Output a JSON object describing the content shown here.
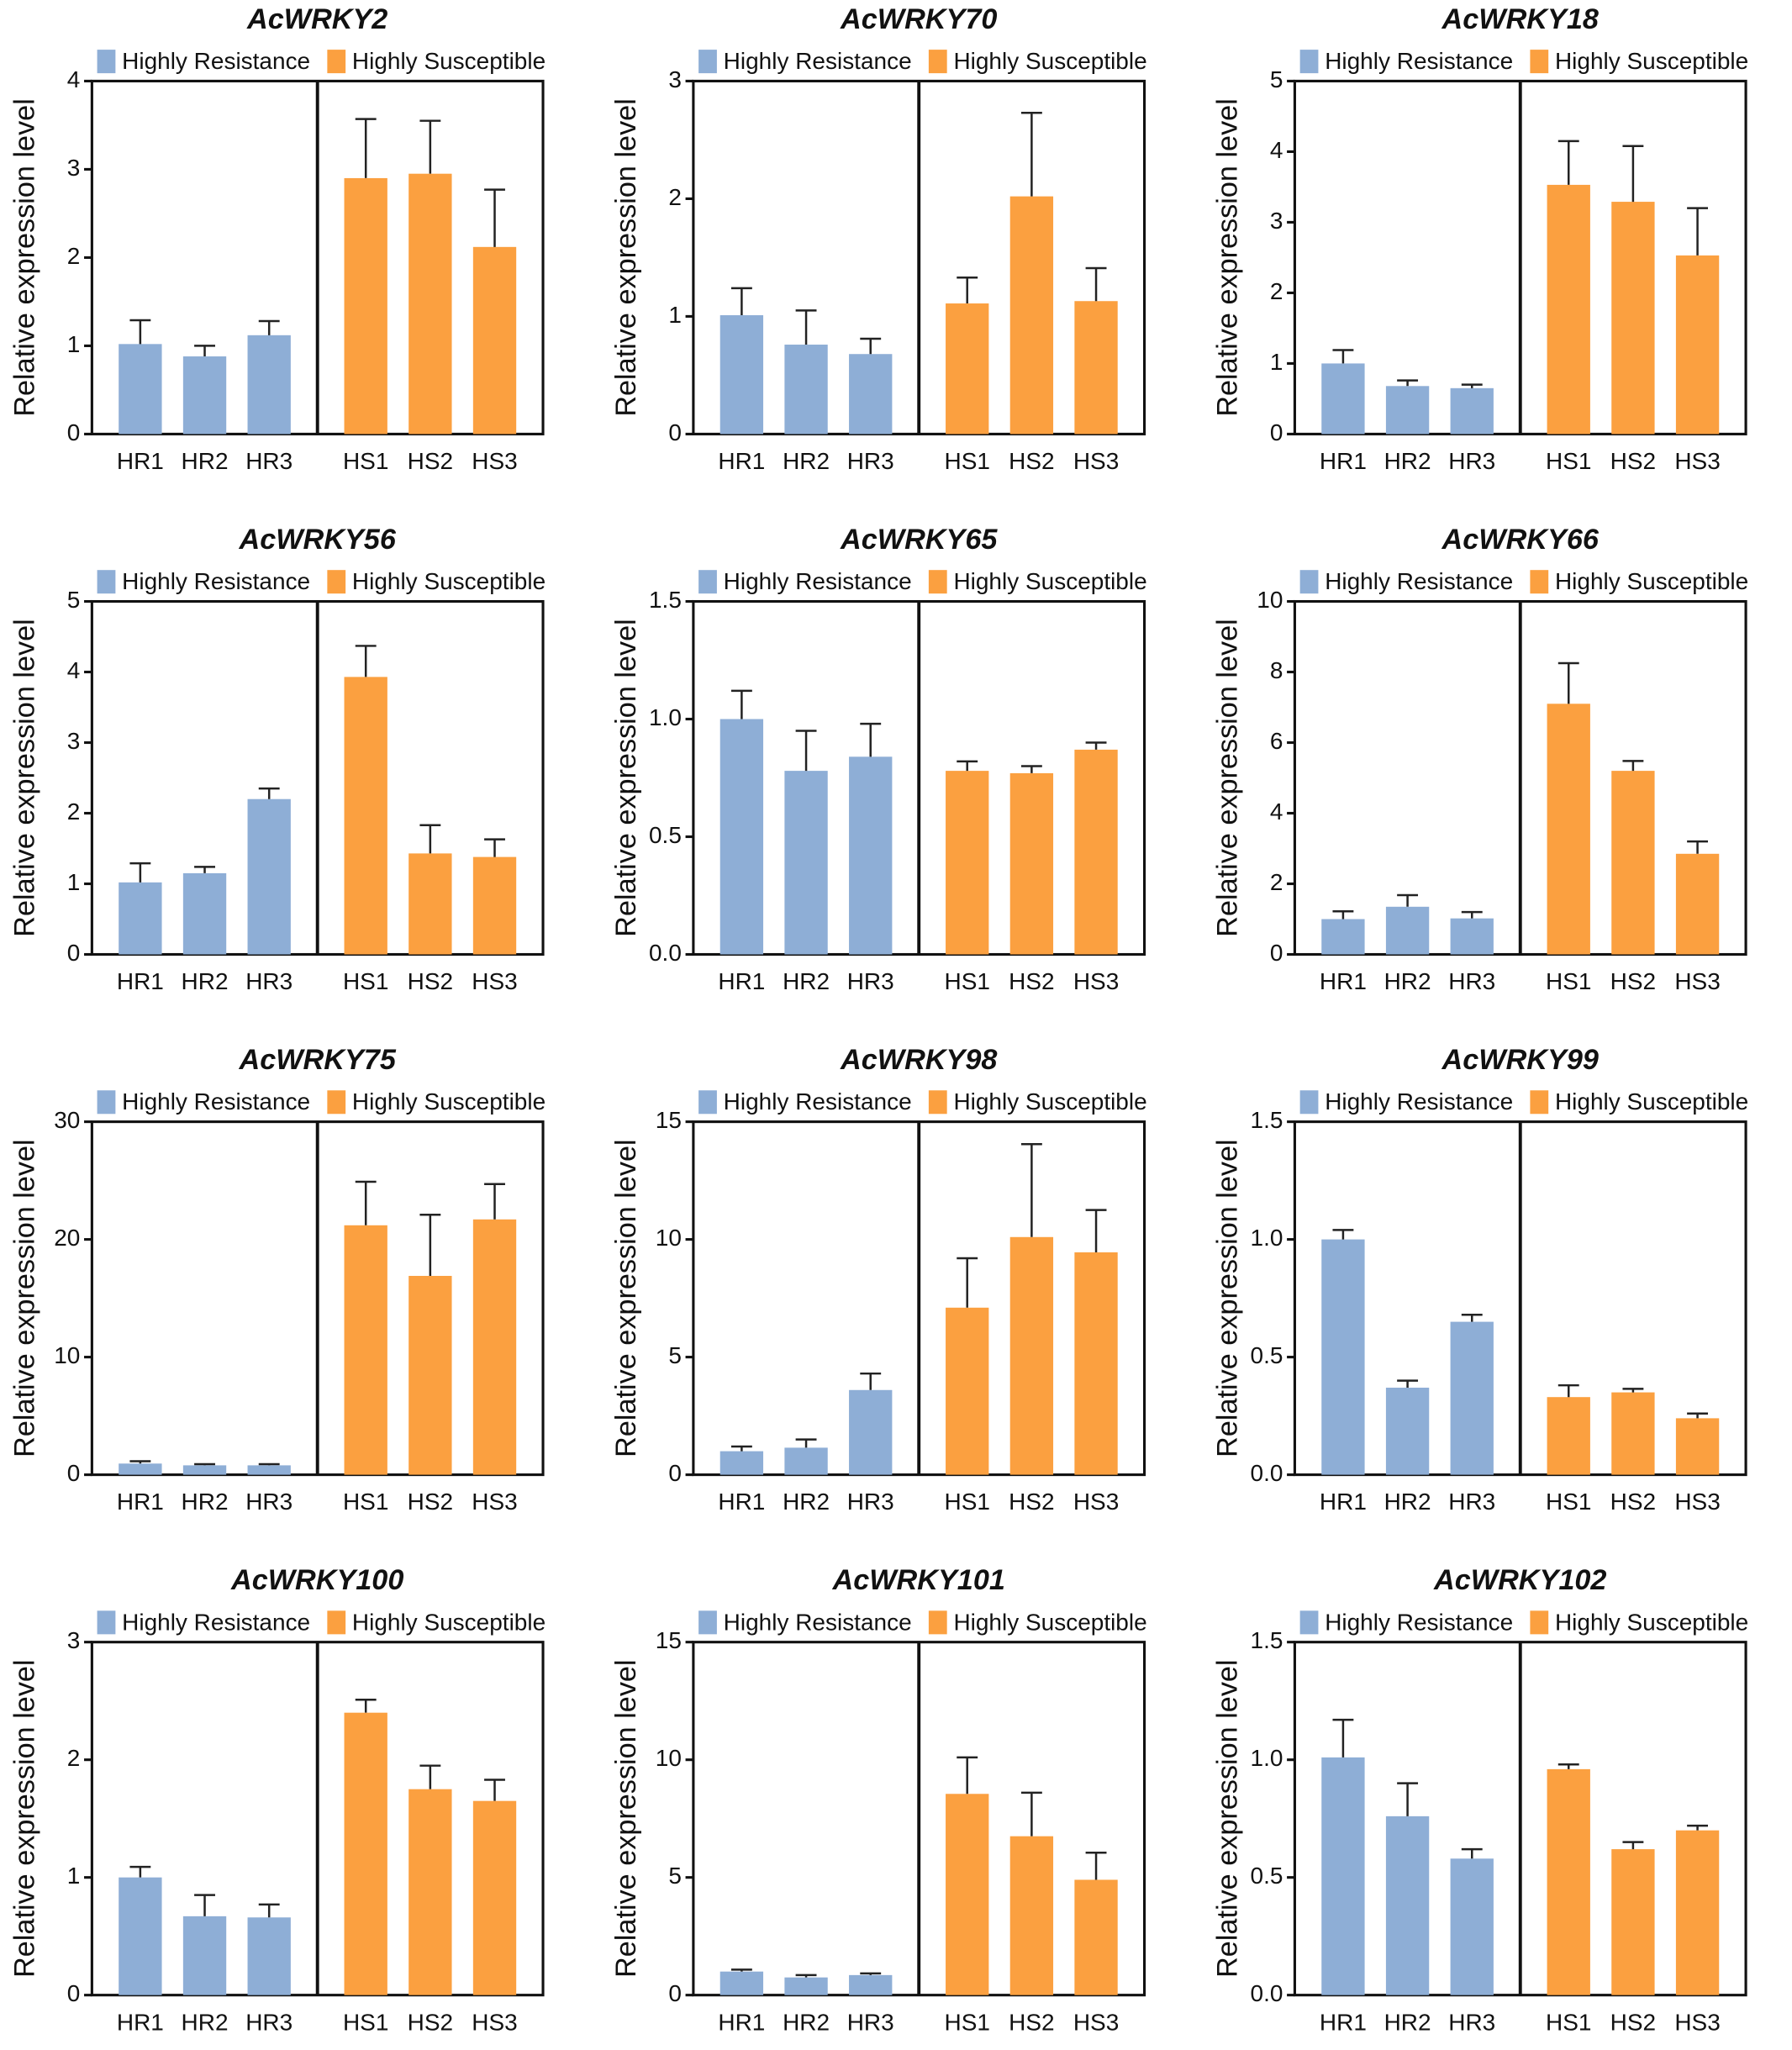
{
  "chart_data": [
    {
      "type": "bar",
      "title": "AcWRKY2",
      "y_label": "Relative expression level",
      "ylim": [
        0,
        4
      ],
      "yticks": [
        0,
        1,
        2,
        3,
        4
      ],
      "series": [
        {
          "name": "Highly Resistance",
          "color": "#8eaed6",
          "categories": [
            "HR1",
            "HR2",
            "HR3"
          ],
          "values": [
            1.02,
            0.88,
            1.12
          ],
          "errors": [
            0.27,
            0.12,
            0.16
          ]
        },
        {
          "name": "Highly Susceptible",
          "color": "#fba040",
          "categories": [
            "HS1",
            "HS2",
            "HS3"
          ],
          "values": [
            2.9,
            2.95,
            2.12
          ],
          "errors": [
            0.67,
            0.6,
            0.65
          ]
        }
      ]
    },
    {
      "type": "bar",
      "title": "AcWRKY70",
      "y_label": "Relative expression level",
      "ylim": [
        0,
        3
      ],
      "yticks": [
        0,
        1,
        2,
        3
      ],
      "series": [
        {
          "name": "Highly Resistance",
          "color": "#8eaed6",
          "categories": [
            "HR1",
            "HR2",
            "HR3"
          ],
          "values": [
            1.01,
            0.76,
            0.68
          ],
          "errors": [
            0.23,
            0.29,
            0.13
          ]
        },
        {
          "name": "Highly Susceptible",
          "color": "#fba040",
          "categories": [
            "HS1",
            "HS2",
            "HS3"
          ],
          "values": [
            1.11,
            2.02,
            1.13
          ],
          "errors": [
            0.22,
            0.71,
            0.28
          ]
        }
      ]
    },
    {
      "type": "bar",
      "title": "AcWRKY18",
      "y_label": "Relative expression level",
      "ylim": [
        0,
        5
      ],
      "yticks": [
        0,
        1,
        2,
        3,
        4,
        5
      ],
      "series": [
        {
          "name": "Highly Resistance",
          "color": "#8eaed6",
          "categories": [
            "HR1",
            "HR2",
            "HR3"
          ],
          "values": [
            1.0,
            0.68,
            0.65
          ],
          "errors": [
            0.19,
            0.08,
            0.05
          ]
        },
        {
          "name": "Highly Susceptible",
          "color": "#fba040",
          "categories": [
            "HS1",
            "HS2",
            "HS3"
          ],
          "values": [
            3.53,
            3.29,
            2.53
          ],
          "errors": [
            0.62,
            0.79,
            0.67
          ]
        }
      ]
    },
    {
      "type": "bar",
      "title": "AcWRKY56",
      "y_label": "Relative expression level",
      "ylim": [
        0,
        5
      ],
      "yticks": [
        0,
        1,
        2,
        3,
        4,
        5
      ],
      "series": [
        {
          "name": "Highly Resistance",
          "color": "#8eaed6",
          "categories": [
            "HR1",
            "HR2",
            "HR3"
          ],
          "values": [
            1.02,
            1.15,
            2.2
          ],
          "errors": [
            0.27,
            0.09,
            0.15
          ]
        },
        {
          "name": "Highly Susceptible",
          "color": "#fba040",
          "categories": [
            "HS1",
            "HS2",
            "HS3"
          ],
          "values": [
            3.93,
            1.43,
            1.38
          ],
          "errors": [
            0.44,
            0.4,
            0.25
          ]
        }
      ]
    },
    {
      "type": "bar",
      "title": "AcWRKY65",
      "y_label": "Relative expression level",
      "ylim": [
        0,
        1.5
      ],
      "yticks": [
        {
          "value": 0,
          "label": "0.0"
        },
        0.5,
        {
          "value": 1,
          "label": "1.0"
        },
        1.5
      ],
      "series": [
        {
          "name": "Highly Resistance",
          "color": "#8eaed6",
          "categories": [
            "HR1",
            "HR2",
            "HR3"
          ],
          "values": [
            1.0,
            0.78,
            0.84
          ],
          "errors": [
            0.12,
            0.17,
            0.14
          ]
        },
        {
          "name": "Highly Susceptible",
          "color": "#fba040",
          "categories": [
            "HS1",
            "HS2",
            "HS3"
          ],
          "values": [
            0.78,
            0.77,
            0.87
          ],
          "errors": [
            0.04,
            0.03,
            0.03
          ]
        }
      ]
    },
    {
      "type": "bar",
      "title": "AcWRKY66",
      "y_label": "Relative expression level",
      "ylim": [
        0,
        10
      ],
      "yticks": [
        0,
        2,
        4,
        6,
        8,
        10
      ],
      "series": [
        {
          "name": "Highly Resistance",
          "color": "#8eaed6",
          "categories": [
            "HR1",
            "HR2",
            "HR3"
          ],
          "values": [
            1.0,
            1.35,
            1.02
          ],
          "errors": [
            0.22,
            0.33,
            0.18
          ]
        },
        {
          "name": "Highly Susceptible",
          "color": "#fba040",
          "categories": [
            "HS1",
            "HS2",
            "HS3"
          ],
          "values": [
            7.1,
            5.2,
            2.85
          ],
          "errors": [
            1.15,
            0.28,
            0.35
          ]
        }
      ]
    },
    {
      "type": "bar",
      "title": "AcWRKY75",
      "y_label": "Relative expression level",
      "ylim": [
        0,
        30
      ],
      "yticks": [
        0,
        10,
        20,
        30
      ],
      "series": [
        {
          "name": "Highly Resistance",
          "color": "#8eaed6",
          "categories": [
            "HR1",
            "HR2",
            "HR3"
          ],
          "values": [
            0.95,
            0.8,
            0.8
          ],
          "errors": [
            0.2,
            0.1,
            0.1
          ]
        },
        {
          "name": "Highly Susceptible",
          "color": "#fba040",
          "categories": [
            "HS1",
            "HS2",
            "HS3"
          ],
          "values": [
            21.2,
            16.9,
            21.7
          ],
          "errors": [
            3.7,
            5.2,
            3.0
          ]
        }
      ]
    },
    {
      "type": "bar",
      "title": "AcWRKY98",
      "y_label": "Relative expression level",
      "ylim": [
        0,
        15
      ],
      "yticks": [
        0,
        5,
        10,
        15
      ],
      "series": [
        {
          "name": "Highly Resistance",
          "color": "#8eaed6",
          "categories": [
            "HR1",
            "HR2",
            "HR3"
          ],
          "values": [
            1.0,
            1.15,
            3.6
          ],
          "errors": [
            0.2,
            0.35,
            0.7
          ]
        },
        {
          "name": "Highly Susceptible",
          "color": "#fba040",
          "categories": [
            "HS1",
            "HS2",
            "HS3"
          ],
          "values": [
            7.1,
            10.1,
            9.45
          ],
          "errors": [
            2.1,
            3.95,
            1.8
          ]
        }
      ]
    },
    {
      "type": "bar",
      "title": "AcWRKY99",
      "y_label": "Relative expression level",
      "ylim": [
        0,
        1.5
      ],
      "yticks": [
        {
          "value": 0,
          "label": "0.0"
        },
        0.5,
        {
          "value": 1,
          "label": "1.0"
        },
        1.5
      ],
      "series": [
        {
          "name": "Highly Resistance",
          "color": "#8eaed6",
          "categories": [
            "HR1",
            "HR2",
            "HR3"
          ],
          "values": [
            1.0,
            0.37,
            0.65
          ],
          "errors": [
            0.04,
            0.03,
            0.03
          ]
        },
        {
          "name": "Highly Susceptible",
          "color": "#fba040",
          "categories": [
            "HS1",
            "HS2",
            "HS3"
          ],
          "values": [
            0.33,
            0.35,
            0.24
          ],
          "errors": [
            0.05,
            0.015,
            0.02
          ]
        }
      ]
    },
    {
      "type": "bar",
      "title": "AcWRKY100",
      "y_label": "Relative expression level",
      "ylim": [
        0,
        3
      ],
      "yticks": [
        0,
        1,
        2,
        3
      ],
      "series": [
        {
          "name": "Highly Resistance",
          "color": "#8eaed6",
          "categories": [
            "HR1",
            "HR2",
            "HR3"
          ],
          "values": [
            1.0,
            0.67,
            0.66
          ],
          "errors": [
            0.09,
            0.18,
            0.11
          ]
        },
        {
          "name": "Highly Susceptible",
          "color": "#fba040",
          "categories": [
            "HS1",
            "HS2",
            "HS3"
          ],
          "values": [
            2.4,
            1.75,
            1.65
          ],
          "errors": [
            0.11,
            0.2,
            0.18
          ]
        }
      ]
    },
    {
      "type": "bar",
      "title": "AcWRKY101",
      "y_label": "Relative expression level",
      "ylim": [
        0,
        15
      ],
      "yticks": [
        0,
        5,
        10,
        15
      ],
      "series": [
        {
          "name": "Highly Resistance",
          "color": "#8eaed6",
          "categories": [
            "HR1",
            "HR2",
            "HR3"
          ],
          "values": [
            1.0,
            0.75,
            0.85
          ],
          "errors": [
            0.08,
            0.1,
            0.07
          ]
        },
        {
          "name": "Highly Susceptible",
          "color": "#fba040",
          "categories": [
            "HS1",
            "HS2",
            "HS3"
          ],
          "values": [
            8.55,
            6.75,
            4.9
          ],
          "errors": [
            1.55,
            1.85,
            1.15
          ]
        }
      ]
    },
    {
      "type": "bar",
      "title": "AcWRKY102",
      "y_label": "Relative expression level",
      "ylim": [
        0,
        1.5
      ],
      "yticks": [
        {
          "value": 0,
          "label": "0.0"
        },
        0.5,
        {
          "value": 1,
          "label": "1.0"
        },
        1.5
      ],
      "series": [
        {
          "name": "Highly Resistance",
          "color": "#8eaed6",
          "categories": [
            "HR1",
            "HR2",
            "HR3"
          ],
          "values": [
            1.01,
            0.76,
            0.58
          ],
          "errors": [
            0.16,
            0.14,
            0.04
          ]
        },
        {
          "name": "Highly Susceptible",
          "color": "#fba040",
          "categories": [
            "HS1",
            "HS2",
            "HS3"
          ],
          "values": [
            0.96,
            0.62,
            0.7
          ],
          "errors": [
            0.02,
            0.03,
            0.02
          ]
        }
      ]
    }
  ]
}
